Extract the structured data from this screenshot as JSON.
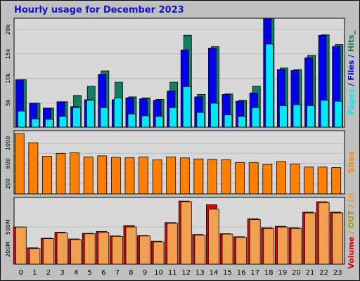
{
  "title": "Hourly usage for December 2023",
  "colors": {
    "hits": "#108060",
    "files": "#0000f0",
    "pages": "#00e8f8",
    "sites": "#ff8000",
    "volume": "#e00000",
    "kbin": "#f0a050",
    "kbout": "#a0a000",
    "border": "#000000",
    "panel": "#d8d8d8",
    "frame": "#c0c0c0"
  },
  "hours": [
    "0",
    "1",
    "2",
    "3",
    "4",
    "5",
    "6",
    "7",
    "8",
    "9",
    "10",
    "11",
    "12",
    "13",
    "14",
    "15",
    "16",
    "17",
    "18",
    "19",
    "20",
    "21",
    "22",
    "23"
  ],
  "chart_data": [
    {
      "type": "bar",
      "series_label_parts": [
        {
          "text": "Pages",
          "color_key": "pages"
        },
        {
          "text": " / ",
          "color_key": "files"
        },
        {
          "text": "Files",
          "color_key": "files"
        },
        {
          "text": " / ",
          "color_key": "files"
        },
        {
          "text": "Hits",
          "color_key": "hits"
        },
        {
          "text": "_",
          "color_key": "files"
        }
      ],
      "ylim": [
        0,
        22000
      ],
      "ytick_values": [
        5000,
        10000,
        15000,
        20000
      ],
      "yticks": [
        "5k",
        "10k",
        "15k",
        "20k"
      ],
      "series": [
        {
          "name": "Hits",
          "color_key": "hits",
          "values": [
            9700,
            4900,
            3900,
            5200,
            6500,
            8400,
            11500,
            9200,
            6200,
            6000,
            5700,
            9200,
            18800,
            6700,
            16500,
            6800,
            5500,
            8400,
            22300,
            12100,
            11800,
            14700,
            18900,
            16900
          ]
        },
        {
          "name": "Files",
          "color_key": "files",
          "values": [
            9700,
            4900,
            3900,
            5200,
            4200,
            5600,
            10800,
            5600,
            6000,
            5800,
            5500,
            7400,
            15800,
            6200,
            16200,
            6700,
            5300,
            7000,
            22300,
            11800,
            11600,
            14200,
            18800,
            16500
          ]
        },
        {
          "name": "Pages",
          "color_key": "pages",
          "values": [
            3300,
            1700,
            1600,
            2200,
            4000,
            5500,
            4000,
            6000,
            2700,
            2300,
            2200,
            4000,
            8300,
            3000,
            4900,
            2500,
            2200,
            4000,
            17000,
            4400,
            4600,
            4400,
            5500,
            5300
          ]
        }
      ]
    },
    {
      "type": "bar",
      "series_label_parts": [
        {
          "text": "Sites",
          "color_key": "sites"
        }
      ],
      "ylim": [
        0,
        1220
      ],
      "ytick_values": [
        200,
        400,
        600,
        800,
        1000
      ],
      "yticks": [
        "200",
        "",
        "600",
        "",
        "1000"
      ],
      "series": [
        {
          "name": "Sites",
          "color_key": "sites",
          "values": [
            1190,
            1010,
            740,
            800,
            810,
            730,
            750,
            720,
            715,
            730,
            670,
            730,
            710,
            690,
            680,
            675,
            620,
            620,
            580,
            640,
            590,
            530,
            530,
            520
          ]
        }
      ]
    },
    {
      "type": "bar",
      "series_label_parts": [
        {
          "text": "Volume",
          "color_key": "volume"
        },
        {
          "text": " / ",
          "color_key": "kbout"
        },
        {
          "text": "OUT",
          "color_key": "kbout"
        },
        {
          "text": " / ",
          "color_key": "kbout"
        },
        {
          "text": "IN",
          "color_key": "kbin"
        }
      ],
      "ylim": [
        0,
        880
      ],
      "ytick_values": [
        200,
        500
      ],
      "yticks": [
        "200M",
        "500M"
      ],
      "series": [
        {
          "name": "Volume",
          "color_key": "volume",
          "values": [
            500,
            220,
            350,
            430,
            340,
            415,
            440,
            380,
            520,
            385,
            310,
            560,
            850,
            400,
            800,
            410,
            370,
            610,
            490,
            510,
            490,
            700,
            840,
            700
          ]
        },
        {
          "name": "IN",
          "color_key": "kbin",
          "values": [
            500,
            210,
            345,
            420,
            330,
            410,
            430,
            375,
            500,
            380,
            300,
            550,
            840,
            390,
            740,
            405,
            360,
            600,
            480,
            500,
            480,
            690,
            830,
            690
          ]
        }
      ]
    }
  ]
}
